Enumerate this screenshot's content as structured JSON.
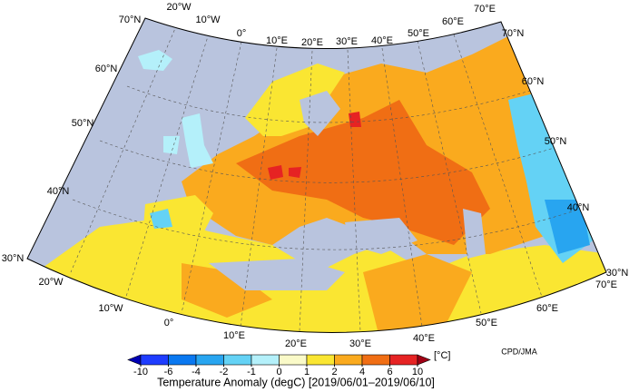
{
  "map": {
    "lon_labels_top": [
      "20°W",
      "10°W",
      "0°",
      "10°E",
      "20°E",
      "30°E",
      "40°E",
      "50°E",
      "60°E",
      "70°E"
    ],
    "lon_labels_bottom": [
      "20°W",
      "10°W",
      "0°",
      "10°E",
      "20°E",
      "30°E",
      "40°E",
      "50°E",
      "60°E",
      "70°E"
    ],
    "lat_labels_left": [
      "70°N",
      "60°N",
      "50°N",
      "40°N",
      "30°N"
    ],
    "lat_labels_right": [
      "70°N",
      "60°N",
      "50°N",
      "40°N",
      "30°N"
    ]
  },
  "colorbar": {
    "ticks": [
      -10,
      -6,
      -4,
      -2,
      -1,
      0,
      1,
      2,
      4,
      6,
      10
    ],
    "colors": [
      "#0000b4",
      "#1e3cff",
      "#0a78f0",
      "#28a5f0",
      "#64d2f5",
      "#b4f0fa",
      "#fafac8",
      "#fae632",
      "#faaa1e",
      "#f06e14",
      "#e62323",
      "#a00014"
    ],
    "unit": "[°C]",
    "title": "Temperature Anomaly (degC) [2019/06/01–2019/06/10]"
  },
  "credit": "CPD/JMA"
}
